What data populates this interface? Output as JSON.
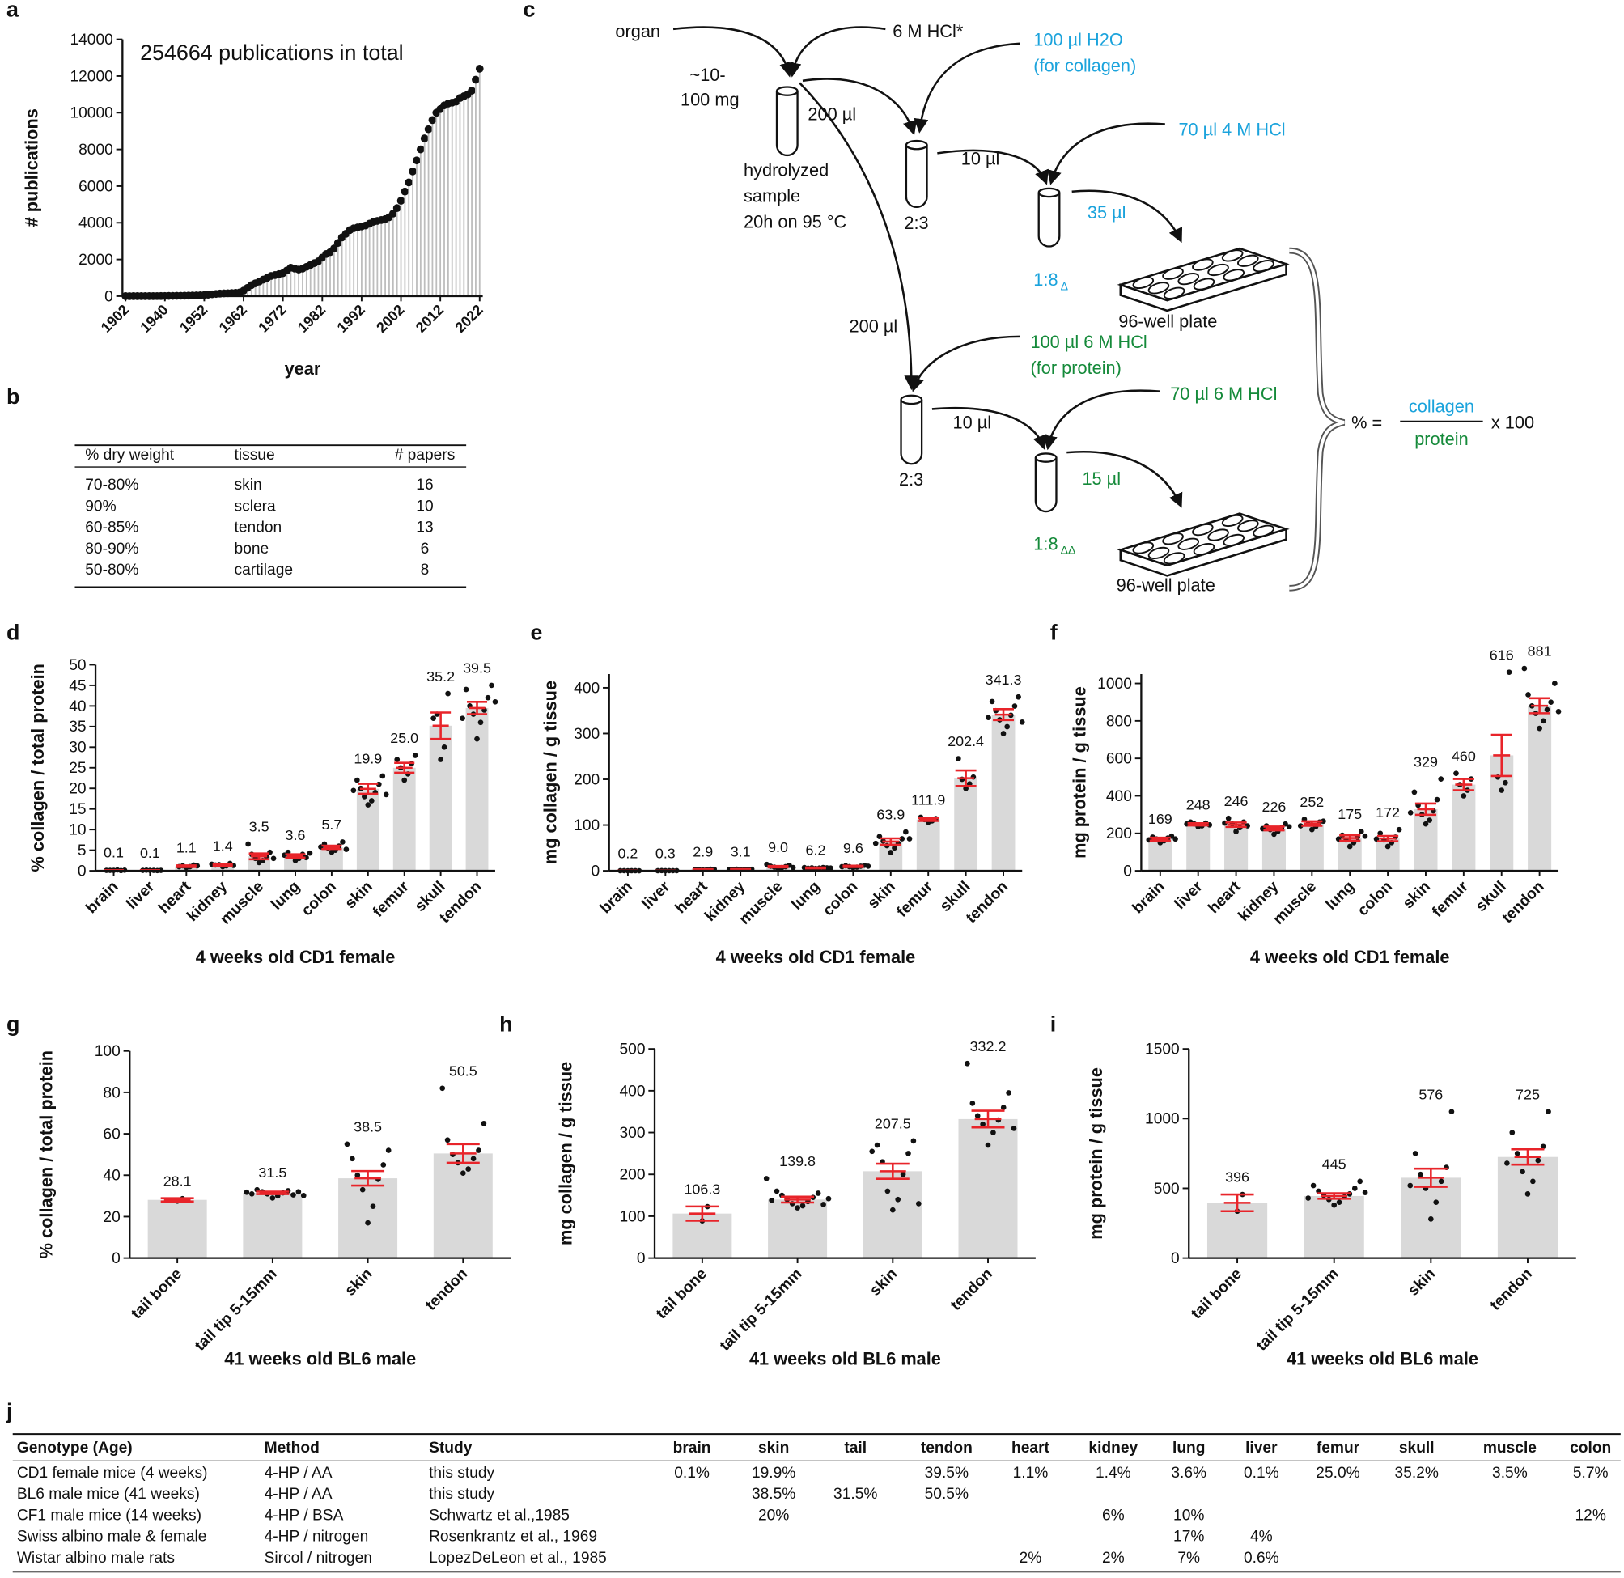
{
  "chart_data": [
    {
      "type": "lollipop",
      "label": "a",
      "annotation": "254664 publications in total",
      "xlabel": "year",
      "ylabel": "# publications",
      "categories": [
        "1902",
        null,
        null,
        null,
        null,
        null,
        null,
        null,
        null,
        null,
        "1940",
        null,
        null,
        null,
        null,
        null,
        null,
        null,
        null,
        null,
        "1952",
        null,
        null,
        null,
        null,
        null,
        null,
        null,
        null,
        null,
        "1962",
        null,
        null,
        null,
        null,
        null,
        null,
        null,
        null,
        null,
        "1972",
        null,
        null,
        null,
        null,
        null,
        null,
        null,
        null,
        null,
        "1982",
        null,
        null,
        null,
        null,
        null,
        null,
        null,
        null,
        null,
        "1992",
        null,
        null,
        null,
        null,
        null,
        null,
        null,
        null,
        null,
        "2002",
        null,
        null,
        null,
        null,
        null,
        null,
        null,
        null,
        null,
        "2012",
        null,
        null,
        null,
        null,
        null,
        null,
        null,
        null,
        null,
        "2022"
      ],
      "values": [
        1,
        0,
        2,
        1,
        3,
        2,
        4,
        5,
        6,
        8,
        10,
        12,
        15,
        18,
        22,
        25,
        30,
        35,
        40,
        50,
        60,
        80,
        100,
        120,
        140,
        150,
        160,
        170,
        180,
        200,
        300,
        450,
        600,
        700,
        800,
        900,
        1000,
        1100,
        1150,
        1200,
        1250,
        1400,
        1550,
        1500,
        1450,
        1500,
        1600,
        1700,
        1800,
        1900,
        2100,
        2300,
        2400,
        2600,
        2900,
        3200,
        3400,
        3600,
        3700,
        3750,
        3800,
        3850,
        3950,
        4050,
        4100,
        4150,
        4200,
        4300,
        4500,
        4800,
        5200,
        5700,
        6200,
        6800,
        7400,
        8000,
        8600,
        9100,
        9600,
        10000,
        10200,
        10400,
        10500,
        10550,
        10600,
        10800,
        10900,
        11000,
        11200,
        11800,
        12400
      ],
      "color": "#bdbdbd",
      "marker_color": "#111111",
      "ylim": [
        0,
        14000
      ],
      "yticks": [
        0,
        2000,
        4000,
        6000,
        8000,
        10000,
        12000,
        14000
      ]
    },
    {
      "type": "bar",
      "label": "d",
      "ylabel": "% collagen / total protein",
      "xlabel": "4 weeks old CD1 female",
      "categories": [
        "brain",
        "liver",
        "heart",
        "kidney",
        "muscle",
        "lung",
        "colon",
        "skin",
        "femur",
        "skull",
        "tendon"
      ],
      "values": [
        0.1,
        0.1,
        1.1,
        1.4,
        3.5,
        3.6,
        5.7,
        19.9,
        25.0,
        35.2,
        39.5
      ],
      "value_labels": [
        "0.1",
        "0.1",
        "1.1",
        "1.4",
        "3.5",
        "3.6",
        "5.7",
        "19.9",
        "25.0",
        "35.2",
        "39.5"
      ],
      "errors": [
        0.05,
        0.05,
        0.2,
        0.2,
        0.7,
        0.4,
        0.4,
        1.2,
        1.2,
        3.2,
        1.5
      ],
      "points": [
        [
          0.1,
          0.2,
          0.1,
          0.05,
          0.1,
          0.15
        ],
        [
          0.1,
          0.1,
          0.15,
          0.05,
          0.1,
          0.1
        ],
        [
          0.8,
          1.0,
          1.2,
          1.4,
          1.0,
          1.2
        ],
        [
          1.0,
          1.2,
          1.5,
          1.8,
          1.4,
          1.3,
          1.6
        ],
        [
          2.0,
          2.5,
          3.0,
          3.5,
          4.0,
          4.5,
          6.5,
          3.0
        ],
        [
          2.5,
          3.0,
          3.5,
          4.0,
          4.5,
          3.2,
          3.8,
          4.3
        ],
        [
          4.5,
          5.0,
          5.5,
          6.0,
          6.5,
          7.0,
          5.8,
          5.2
        ],
        [
          16,
          17,
          18,
          19,
          20,
          21,
          22,
          23,
          19.5,
          18.5
        ],
        [
          22,
          23.5,
          25,
          26,
          27,
          28
        ],
        [
          27,
          30,
          38,
          43,
          37
        ],
        [
          32,
          36,
          38,
          39,
          40,
          42,
          44,
          45,
          37,
          41
        ]
      ],
      "color": "#d9d9d9",
      "error_color": "#e8242a",
      "point_color": "#111111",
      "ylim": [
        0,
        50
      ],
      "yticks": [
        0,
        5,
        10,
        15,
        20,
        25,
        30,
        35,
        40,
        45,
        50
      ]
    },
    {
      "type": "bar",
      "label": "e",
      "ylabel": "mg collagen / g tissue",
      "xlabel": "4 weeks old CD1 female",
      "categories": [
        "brain",
        "liver",
        "heart",
        "kidney",
        "muscle",
        "lung",
        "colon",
        "skin",
        "femur",
        "skull",
        "tendon"
      ],
      "values": [
        0.2,
        0.3,
        2.9,
        3.1,
        9.0,
        6.2,
        9.6,
        63.9,
        111.9,
        202.4,
        341.3
      ],
      "value_labels": [
        "0.2",
        "0.3",
        "2.9",
        "3.1",
        "9.0",
        "6.2",
        "9.6",
        "63.9",
        "111.9",
        "202.4",
        "341.3"
      ],
      "errors": [
        0.05,
        0.05,
        0.5,
        0.5,
        1.5,
        1,
        1.5,
        7,
        3,
        17,
        12
      ],
      "points": [
        [
          0.1,
          0.2,
          0.3,
          0.2,
          0.2,
          0.1
        ],
        [
          0.2,
          0.3,
          0.4,
          0.3,
          0.2,
          0.3
        ],
        [
          2,
          2.5,
          3,
          3.5,
          3,
          3.4
        ],
        [
          2.5,
          3,
          3.5,
          3,
          3.2,
          3.4,
          3
        ],
        [
          5,
          7,
          8,
          9,
          10,
          12,
          14,
          7
        ],
        [
          5,
          6,
          6.5,
          7,
          5.5,
          6.5,
          7,
          6
        ],
        [
          7,
          8,
          9,
          10,
          11,
          12,
          9,
          10
        ],
        [
          40,
          50,
          55,
          60,
          65,
          70,
          75,
          85,
          60,
          70
        ],
        [
          106,
          109,
          112,
          114,
          117
        ],
        [
          180,
          190,
          200,
          205,
          245
        ],
        [
          300,
          315,
          330,
          340,
          350,
          360,
          370,
          380,
          335,
          325
        ]
      ],
      "color": "#d9d9d9",
      "error_color": "#e8242a",
      "point_color": "#111111",
      "ylim": [
        0,
        430
      ],
      "yticks": [
        0,
        100,
        200,
        300,
        400
      ]
    },
    {
      "type": "bar",
      "label": "f",
      "ylabel": "mg protein / g tissue",
      "xlabel": "4 weeks old CD1 female",
      "categories": [
        "brain",
        "liver",
        "heart",
        "kidney",
        "muscle",
        "lung",
        "colon",
        "skin",
        "femur",
        "skull",
        "tendon"
      ],
      "values": [
        169,
        248,
        246,
        226,
        252,
        175,
        172,
        329,
        460,
        616,
        881
      ],
      "errors": [
        8,
        6,
        12,
        10,
        12,
        14,
        14,
        30,
        30,
        110,
        40
      ],
      "points": [
        [
          150,
          160,
          170,
          175,
          180,
          185,
          165,
          170
        ],
        [
          235,
          240,
          250,
          255,
          260,
          245,
          250
        ],
        [
          210,
          230,
          250,
          260,
          280,
          240,
          255
        ],
        [
          195,
          210,
          220,
          230,
          240,
          250,
          225,
          235
        ],
        [
          220,
          235,
          250,
          260,
          275,
          265,
          240
        ],
        [
          130,
          150,
          165,
          180,
          190,
          210,
          170,
          185
        ],
        [
          130,
          150,
          165,
          180,
          200,
          220,
          170
        ],
        [
          250,
          270,
          300,
          320,
          350,
          380,
          420,
          490,
          310
        ],
        [
          400,
          430,
          460,
          490,
          520
        ],
        [
          430,
          470,
          500,
          1060
        ],
        [
          760,
          800,
          840,
          860,
          880,
          900,
          940,
          1000,
          1080,
          850
        ]
      ],
      "color": "#d9d9d9",
      "error_color": "#e8242a",
      "point_color": "#111111",
      "ylim": [
        0,
        1050
      ],
      "yticks": [
        0,
        200,
        400,
        600,
        800,
        1000
      ]
    },
    {
      "type": "bar",
      "label": "g",
      "ylabel": "% collagen / total protein",
      "xlabel": "41 weeks old BL6 male",
      "categories": [
        "tail bone",
        "tail tip 5-15mm",
        "skin",
        "tendon"
      ],
      "values": [
        28.1,
        31.5,
        38.5,
        50.5
      ],
      "errors": [
        0.8,
        0.6,
        3.5,
        4.5
      ],
      "points": [
        [
          27.5,
          28.7
        ],
        [
          29,
          30,
          31,
          31.5,
          32,
          32.5,
          33,
          30.5,
          31,
          32,
          31.8,
          30.2
        ],
        [
          17,
          25,
          33,
          38,
          40,
          45,
          48,
          52,
          55
        ],
        [
          41,
          43,
          46,
          48,
          50,
          52,
          57,
          65,
          82
        ]
      ],
      "color": "#d9d9d9",
      "error_color": "#e8242a",
      "point_color": "#111111",
      "ylim": [
        0,
        100
      ],
      "yticks": [
        0,
        20,
        40,
        60,
        80,
        100
      ]
    },
    {
      "type": "bar",
      "label": "h",
      "ylabel": "mg collagen / g tissue",
      "xlabel": "41 weeks old BL6 male",
      "categories": [
        "tail bone",
        "tail tip 5-15mm",
        "skin",
        "tendon"
      ],
      "values": [
        106.3,
        139.8,
        207.5,
        332.2
      ],
      "errors": [
        17,
        7,
        18,
        20
      ],
      "points": [
        [
          89,
          123
        ],
        [
          120,
          125,
          130,
          135,
          140,
          145,
          150,
          155,
          160,
          128,
          138,
          142,
          190
        ],
        [
          115,
          140,
          160,
          200,
          230,
          250,
          270,
          280,
          255,
          130
        ],
        [
          270,
          300,
          320,
          330,
          340,
          360,
          370,
          395,
          465,
          310
        ]
      ],
      "color": "#d9d9d9",
      "error_color": "#e8242a",
      "point_color": "#111111",
      "ylim": [
        0,
        500
      ],
      "yticks": [
        0,
        100,
        200,
        300,
        400,
        500
      ]
    },
    {
      "type": "bar",
      "label": "i",
      "ylabel": "mg protein / g tissue",
      "xlabel": "41 weeks old BL6 male",
      "categories": [
        "tail bone",
        "tail tip 5-15mm",
        "skin",
        "tendon"
      ],
      "values": [
        396,
        445,
        576,
        725
      ],
      "errors": [
        60,
        20,
        65,
        55
      ],
      "points": [
        [
          336,
          456
        ],
        [
          380,
          400,
          420,
          440,
          450,
          460,
          480,
          500,
          520,
          550,
          430,
          470
        ],
        [
          280,
          400,
          500,
          550,
          600,
          650,
          750,
          1050,
          520
        ],
        [
          460,
          550,
          620,
          700,
          750,
          800,
          900,
          1050,
          680
        ]
      ],
      "color": "#d9d9d9",
      "error_color": "#e8242a",
      "point_color": "#111111",
      "ylim": [
        0,
        1500
      ],
      "yticks": [
        0,
        500,
        1000,
        1500
      ]
    }
  ],
  "table_b": {
    "label": "b",
    "header": [
      "% dry weight",
      "tissue",
      "# papers"
    ],
    "rows": [
      [
        "70-80%",
        "skin",
        "16"
      ],
      [
        "90%",
        "sclera",
        "10"
      ],
      [
        "60-85%",
        "tendon",
        "13"
      ],
      [
        "80-90%",
        "bone",
        "6"
      ],
      [
        "50-80%",
        "cartilage",
        "8"
      ]
    ]
  },
  "diagram_c": {
    "label": "c",
    "organ": "organ",
    "amount": [
      "~10-",
      "100 mg"
    ],
    "acid": "6 M HCl*",
    "hydrolyzed": [
      "hydrolyzed",
      "sample",
      "20h on 95 °C"
    ],
    "transfer_1": "200 µl",
    "transfer_2": "200 µl",
    "water": [
      "100 µl H2O",
      "(for collagen)"
    ],
    "hcl_protein": [
      "100 µl 6 M HCl",
      "(for protein)"
    ],
    "dilution_1": "2:3",
    "dilution_2": "2:3",
    "aliquot_1": "10 µl",
    "aliquot_2": "10 µl",
    "hcl_4m": "70 µl 4 M HCl",
    "hcl_6m": "70 µl 6 M HCl",
    "load_collagen": "35 µl",
    "load_protein": "15 µl",
    "final_collagen": {
      "text": "1:8",
      "sub": "Δ"
    },
    "final_protein": {
      "text": "1:8",
      "sub": "ΔΔ"
    },
    "plate_1": "96-well plate",
    "plate_2": "96-well plate",
    "formula": {
      "prefix": "% =",
      "numerator": "collagen",
      "denominator": "protein",
      "suffix": "x 100"
    }
  },
  "table_j": {
    "label": "j",
    "header": [
      "Genotype (Age)",
      "Method",
      "Study",
      "brain",
      "skin",
      "tail",
      "tendon",
      "heart",
      "kidney",
      "lung",
      "liver",
      "femur",
      "skull",
      "muscle",
      "colon"
    ],
    "rows": [
      [
        "CD1 female mice (4 weeks)",
        "4-HP / AA",
        "this study",
        "0.1%",
        "19.9%",
        null,
        "39.5%",
        "1.1%",
        "1.4%",
        "3.6%",
        "0.1%",
        "25.0%",
        "35.2%",
        "3.5%",
        "5.7%"
      ],
      [
        "BL6 male mice (41 weeks)",
        "4-HP / AA",
        "this study",
        null,
        "38.5%",
        "31.5%",
        "50.5%",
        null,
        null,
        null,
        null,
        null,
        null,
        null,
        null
      ],
      [
        "CF1 male mice (14 weeks)",
        "4-HP / BSA",
        "Schwartz et al.,1985",
        null,
        "20%",
        null,
        null,
        null,
        "6%",
        "10%",
        null,
        null,
        null,
        null,
        "12%"
      ],
      [
        "Swiss albino male & female",
        "4-HP / nitrogen",
        "Rosenkrantz et al., 1969",
        null,
        null,
        null,
        null,
        null,
        null,
        "17%",
        "4%",
        null,
        null,
        null,
        null
      ],
      [
        "Wistar albino male rats",
        "Sircol / nitrogen",
        "LopezDeLeon et al., 1985",
        null,
        null,
        null,
        null,
        "2%",
        "2%",
        "7%",
        "0.6%",
        null,
        null,
        null,
        null
      ]
    ]
  }
}
